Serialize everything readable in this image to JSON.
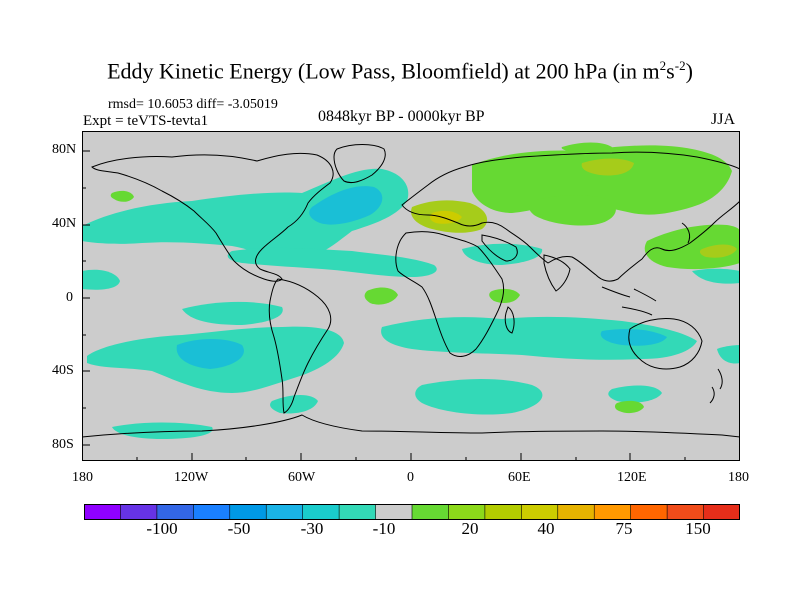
{
  "title": {
    "main": "Eddy Kinetic Energy (Low Pass, Bloomfield) at 200 hPa (in m",
    "sup1": "2",
    "mid": "s",
    "sup2": "-2",
    "close": ")"
  },
  "stats": "rmsd= 10.6053 diff= -3.05019",
  "expt": "Expt = teVTS-tevta1",
  "period": "0848kyr BP - 0000kyr BP",
  "season": "JJA",
  "axes": {
    "lat_labels": [
      "80N",
      "40N",
      "0",
      "40S",
      "80S"
    ],
    "lon_labels": [
      "180",
      "120W",
      "60W",
      "0",
      "60E",
      "120E",
      "180"
    ]
  },
  "colors": {
    "land_bg": "#cccccc",
    "neg_light": "#33d9b7",
    "neg_mid": "#1abfd6",
    "neg_strong": "#1aa3e6",
    "pos_light": "#66d933",
    "pos_mid": "#a6cc1a",
    "pos_strong": "#cccc00"
  },
  "colorbar": {
    "colors": [
      "#8f00ff",
      "#6633e6",
      "#3366e6",
      "#1a80ff",
      "#0099e6",
      "#1ab3e6",
      "#1acccc",
      "#33d9b7",
      "#cccccc",
      "#66d933",
      "#8cd91a",
      "#b3cc00",
      "#cccc00",
      "#e6b300",
      "#ff9900",
      "#ff6600",
      "#f04c1a",
      "#e62e1a"
    ],
    "labels": [
      "-100",
      "-50",
      "-30",
      "-10",
      "20",
      "40",
      "75",
      "150"
    ]
  }
}
